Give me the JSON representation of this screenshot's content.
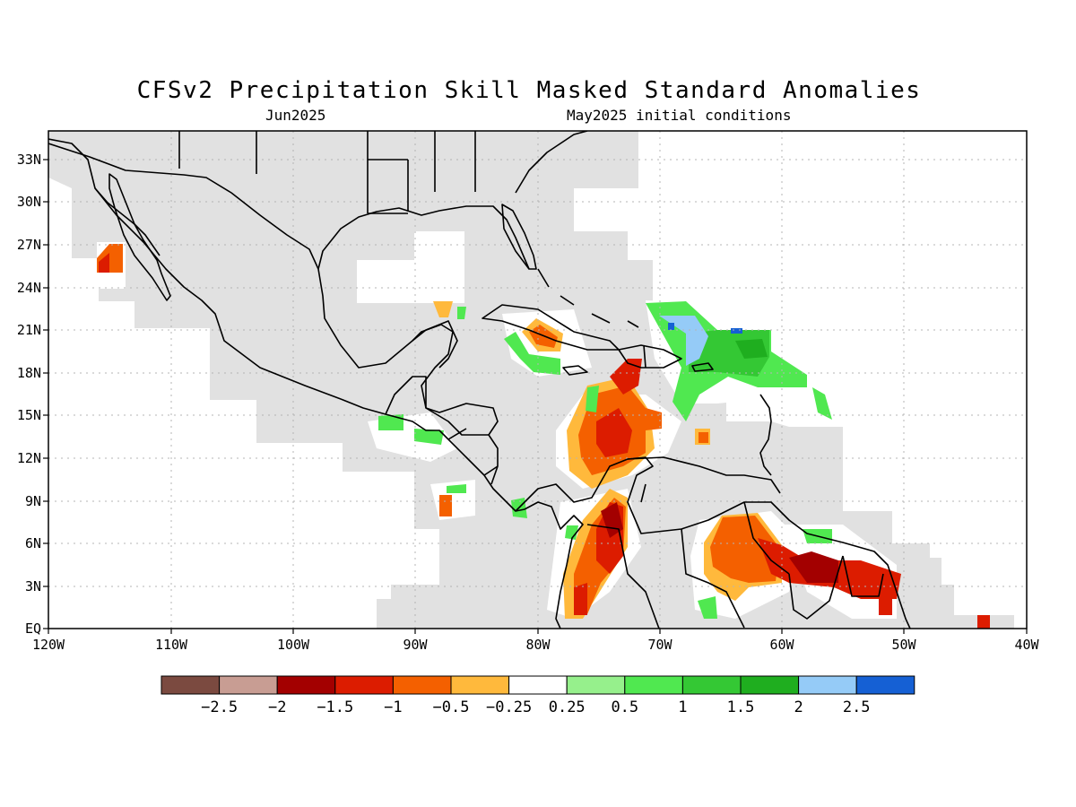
{
  "title": "CFSv2 Precipitation Skill Masked Standard Anomalies",
  "subtitle_left": "Jun2025",
  "subtitle_right": "May2025 initial conditions",
  "map": {
    "lon_range": [
      -120,
      -40
    ],
    "lat_range": [
      0,
      35
    ],
    "lat_labels": [
      {
        "lat": 33,
        "text": "33N"
      },
      {
        "lat": 30,
        "text": "30N"
      },
      {
        "lat": 27,
        "text": "27N"
      },
      {
        "lat": 24,
        "text": "24N"
      },
      {
        "lat": 21,
        "text": "21N"
      },
      {
        "lat": 18,
        "text": "18N"
      },
      {
        "lat": 15,
        "text": "15N"
      },
      {
        "lat": 12,
        "text": "12N"
      },
      {
        "lat": 9,
        "text": "9N"
      },
      {
        "lat": 6,
        "text": "6N"
      },
      {
        "lat": 3,
        "text": "3N"
      },
      {
        "lat": 0,
        "text": "EQ"
      }
    ],
    "lon_labels": [
      {
        "lon": -120,
        "text": "120W"
      },
      {
        "lon": -110,
        "text": "110W"
      },
      {
        "lon": -100,
        "text": "100W"
      },
      {
        "lon": -90,
        "text": "90W"
      },
      {
        "lon": -80,
        "text": "80W"
      },
      {
        "lon": -70,
        "text": "70W"
      },
      {
        "lon": -60,
        "text": "60W"
      },
      {
        "lon": -50,
        "text": "50W"
      },
      {
        "lon": -40,
        "text": "40W"
      }
    ],
    "colors": {
      "skill_mask": "#e1e1e1",
      "lt_-2.5": "#7b4a40",
      "-2.5_-2": "#c89d93",
      "-2_-1.5": "#a30000",
      "-1.5_-1": "#dc1c00",
      "-1_-0.5": "#f46000",
      "-0.5_-0.25": "#ffb93c",
      "0.5_1": "#50e850",
      "1_1.5": "#34c834",
      "1.5_2": "#1fae1f",
      "2_2.5": "#95cbf7",
      "gt_2.5": "#1560d4"
    }
  },
  "colorbar": {
    "colors": [
      "#7b4a40",
      "#c89d93",
      "#a30000",
      "#dc1c00",
      "#f46000",
      "#ffb93c",
      "#ffffff",
      "#96f08c",
      "#50e850",
      "#34c834",
      "#1fae1f",
      "#95cbf7",
      "#1560d4"
    ],
    "labels": [
      "−2.5",
      "−2",
      "−1.5",
      "−1",
      "−0.5",
      "−0.25",
      "0.25",
      "0.5",
      "1",
      "1.5",
      "2",
      "2.5"
    ]
  }
}
